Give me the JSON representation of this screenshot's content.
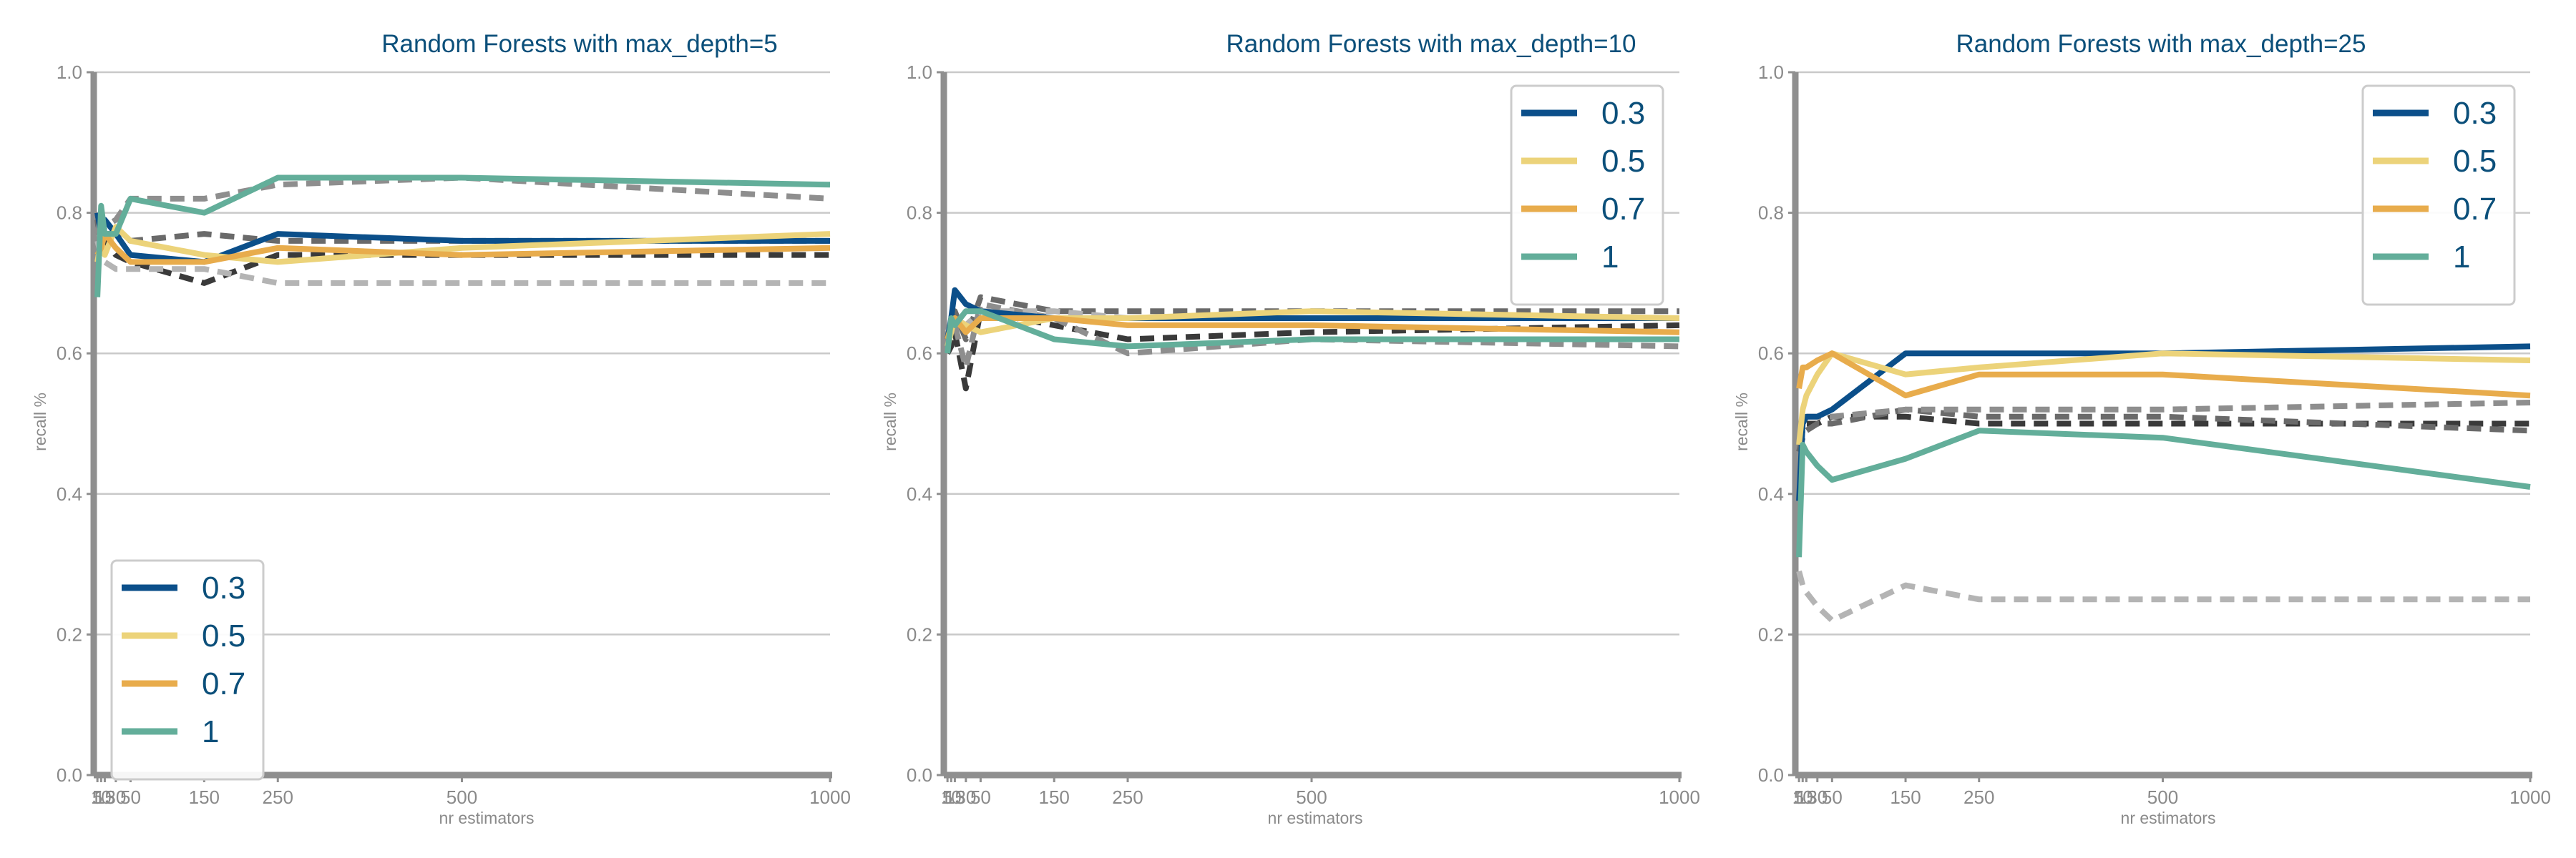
{
  "colors": {
    "c0.3": "#0b4f8a",
    "c0.5": "#ecd37a",
    "c0.7": "#e8ac4c",
    "c1": "#63ae9a",
    "baseline": [
      "#3a3a3a",
      "#6a6a6a",
      "#8e8e8e",
      "#b4b4b4"
    ],
    "grid": "#c9c9c9",
    "axis": "#8f8f8f",
    "title": "#0b4f7a"
  },
  "chart_data": [
    {
      "type": "line",
      "title": "Random Forests with max_depth=5",
      "xlabel": "nr estimators",
      "ylabel": "recall %",
      "xlim": [
        0,
        1000
      ],
      "ylim": [
        0,
        1.0
      ],
      "xticks": [
        5,
        10,
        15,
        30,
        50,
        150,
        250,
        500,
        1000
      ],
      "yticks": [
        "0.0",
        "0.2",
        "0.4",
        "0.6",
        "0.8",
        "1.0"
      ],
      "grid": true,
      "legend_position": "lower-left",
      "x": [
        5,
        10,
        15,
        30,
        50,
        150,
        250,
        500,
        1000
      ],
      "series": [
        {
          "name": "0.3",
          "color_key": "c0.3",
          "values": [
            0.8,
            0.77,
            0.79,
            0.77,
            0.74,
            0.73,
            0.77,
            0.76,
            0.76
          ]
        },
        {
          "name": "0.5",
          "color_key": "c0.5",
          "values": [
            0.73,
            0.76,
            0.74,
            0.78,
            0.76,
            0.74,
            0.73,
            0.75,
            0.77
          ]
        },
        {
          "name": "0.7",
          "color_key": "c0.7",
          "values": [
            0.74,
            0.75,
            0.77,
            0.75,
            0.73,
            0.73,
            0.75,
            0.74,
            0.75
          ]
        },
        {
          "name": "1",
          "color_key": "c1",
          "values": [
            0.68,
            0.81,
            0.77,
            0.77,
            0.82,
            0.8,
            0.85,
            0.85,
            0.84
          ]
        }
      ],
      "baselines": [
        {
          "values": [
            0.8,
            0.77,
            0.76,
            0.74,
            0.73,
            0.7,
            0.74,
            0.74,
            0.74
          ]
        },
        {
          "values": [
            0.79,
            0.75,
            0.77,
            0.77,
            0.76,
            0.77,
            0.76,
            0.76,
            0.76
          ]
        },
        {
          "values": [
            0.77,
            0.8,
            0.78,
            0.79,
            0.82,
            0.82,
            0.84,
            0.85,
            0.82
          ]
        },
        {
          "values": [
            0.76,
            0.74,
            0.73,
            0.72,
            0.72,
            0.72,
            0.7,
            0.7,
            0.7
          ]
        }
      ]
    },
    {
      "type": "line",
      "title": "Random Forests with max_depth=10",
      "xlabel": "nr estimators",
      "ylabel": "recall %",
      "xlim": [
        0,
        1000
      ],
      "ylim": [
        0,
        1.0
      ],
      "xticks": [
        5,
        10,
        15,
        30,
        50,
        150,
        250,
        500,
        1000
      ],
      "yticks": [
        "0.0",
        "0.2",
        "0.4",
        "0.6",
        "0.8",
        "1.0"
      ],
      "grid": true,
      "legend_position": "upper-right",
      "x": [
        5,
        10,
        15,
        30,
        50,
        150,
        250,
        500,
        1000
      ],
      "series": [
        {
          "name": "0.3",
          "color_key": "c0.3",
          "values": [
            0.62,
            0.65,
            0.69,
            0.67,
            0.66,
            0.65,
            0.65,
            0.65,
            0.65
          ]
        },
        {
          "name": "0.5",
          "color_key": "c0.5",
          "values": [
            0.61,
            0.63,
            0.65,
            0.64,
            0.63,
            0.65,
            0.65,
            0.66,
            0.65
          ]
        },
        {
          "name": "0.7",
          "color_key": "c0.7",
          "values": [
            0.62,
            0.64,
            0.65,
            0.63,
            0.65,
            0.65,
            0.64,
            0.64,
            0.63
          ]
        },
        {
          "name": "1",
          "color_key": "c1",
          "values": [
            0.6,
            0.65,
            0.64,
            0.66,
            0.66,
            0.62,
            0.61,
            0.62,
            0.62
          ]
        }
      ],
      "baselines": [
        {
          "values": [
            0.6,
            0.61,
            0.63,
            0.55,
            0.66,
            0.64,
            0.62,
            0.63,
            0.64
          ]
        },
        {
          "values": [
            0.62,
            0.64,
            0.66,
            0.62,
            0.68,
            0.66,
            0.66,
            0.66,
            0.66
          ]
        },
        {
          "values": [
            0.61,
            0.63,
            0.64,
            0.58,
            0.67,
            0.65,
            0.6,
            0.62,
            0.61
          ]
        },
        {
          "values": [
            0.63,
            0.64,
            0.65,
            0.64,
            0.66,
            0.66,
            0.65,
            0.65,
            0.65
          ]
        }
      ]
    },
    {
      "type": "line",
      "title": "Random Forests with max_depth=25",
      "xlabel": "nr estimators",
      "ylabel": "recall %",
      "xlim": [
        0,
        1000
      ],
      "ylim": [
        0,
        1.0
      ],
      "xticks": [
        5,
        10,
        15,
        30,
        50,
        150,
        250,
        500,
        1000
      ],
      "yticks": [
        "0.0",
        "0.2",
        "0.4",
        "0.6",
        "0.8",
        "1.0"
      ],
      "grid": true,
      "legend_position": "upper-right",
      "x": [
        5,
        10,
        15,
        30,
        50,
        150,
        250,
        500,
        1000
      ],
      "series": [
        {
          "name": "0.3",
          "color_key": "c0.3",
          "values": [
            0.39,
            0.5,
            0.51,
            0.51,
            0.52,
            0.6,
            0.6,
            0.6,
            0.61
          ]
        },
        {
          "name": "0.5",
          "color_key": "c0.5",
          "values": [
            0.47,
            0.52,
            0.54,
            0.57,
            0.6,
            0.57,
            0.58,
            0.6,
            0.59
          ]
        },
        {
          "name": "0.7",
          "color_key": "c0.7",
          "values": [
            0.55,
            0.58,
            0.58,
            0.59,
            0.6,
            0.54,
            0.57,
            0.57,
            0.54
          ]
        },
        {
          "name": "1",
          "color_key": "c1",
          "values": [
            0.31,
            0.47,
            0.46,
            0.44,
            0.42,
            0.45,
            0.49,
            0.48,
            0.41
          ]
        }
      ],
      "baselines": [
        {
          "values": [
            0.47,
            0.49,
            0.5,
            0.5,
            0.51,
            0.51,
            0.5,
            0.5,
            0.5
          ]
        },
        {
          "values": [
            0.46,
            0.48,
            0.49,
            0.5,
            0.5,
            0.52,
            0.51,
            0.51,
            0.49
          ]
        },
        {
          "values": [
            0.48,
            0.5,
            0.51,
            0.51,
            0.51,
            0.52,
            0.52,
            0.52,
            0.53
          ]
        },
        {
          "values": [
            0.29,
            0.27,
            0.26,
            0.24,
            0.22,
            0.27,
            0.25,
            0.25,
            0.25
          ]
        }
      ]
    }
  ]
}
